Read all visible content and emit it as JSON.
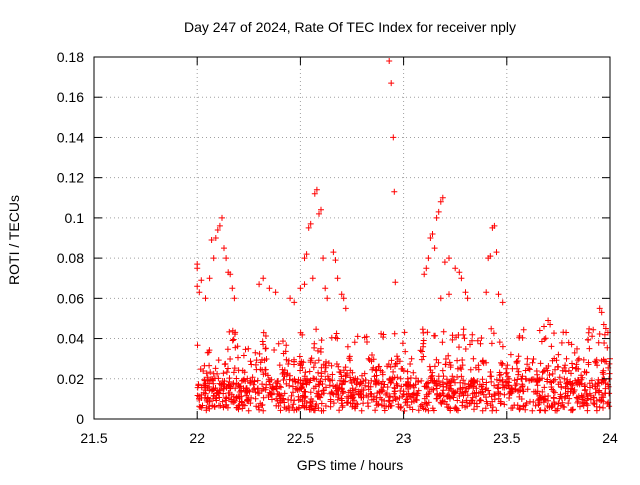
{
  "chart_data": {
    "type": "scatter",
    "title": "Day 247 of 2024, Rate Of TEC Index for receiver nply",
    "xlabel": "GPS time / hours",
    "ylabel": "ROTI / TECUs",
    "xlim": [
      21.5,
      24.0
    ],
    "ylim": [
      0,
      0.18
    ],
    "xticks": [
      21.5,
      22,
      22.5,
      23,
      23.5,
      24
    ],
    "xtick_labels": [
      "21.5",
      "22",
      "22.5",
      "23",
      "23.5",
      "24"
    ],
    "yticks": [
      0,
      0.02,
      0.04,
      0.06,
      0.08,
      0.1,
      0.12,
      0.14,
      0.16,
      0.18
    ],
    "ytick_labels": [
      "0",
      "0.02",
      "0.04",
      "0.06",
      "0.08",
      "0.1",
      "0.12",
      "0.14",
      "0.16",
      "0.18"
    ],
    "grid": true,
    "marker": "+",
    "marker_color": "#ff0000",
    "series": [
      {
        "name": "ROTI",
        "points": [
          [
            22.93,
            0.178
          ],
          [
            22.94,
            0.167
          ],
          [
            22.95,
            0.14
          ],
          [
            22.955,
            0.113
          ],
          [
            22.96,
            0.068
          ],
          [
            22.12,
            0.1
          ],
          [
            22.11,
            0.096
          ],
          [
            22.1,
            0.094
          ],
          [
            22.09,
            0.09
          ],
          [
            22.07,
            0.089
          ],
          [
            22.13,
            0.085
          ],
          [
            22.14,
            0.08
          ],
          [
            22.15,
            0.073
          ],
          [
            22.16,
            0.072
          ],
          [
            22.0,
            0.077
          ],
          [
            22.0,
            0.075
          ],
          [
            22.0,
            0.066
          ],
          [
            22.01,
            0.063
          ],
          [
            22.02,
            0.069
          ],
          [
            22.04,
            0.06
          ],
          [
            22.06,
            0.07
          ],
          [
            22.08,
            0.08
          ],
          [
            22.17,
            0.065
          ],
          [
            22.18,
            0.06
          ],
          [
            22.3,
            0.067
          ],
          [
            22.32,
            0.07
          ],
          [
            22.35,
            0.065
          ],
          [
            22.38,
            0.063
          ],
          [
            22.45,
            0.06
          ],
          [
            22.47,
            0.058
          ],
          [
            22.5,
            0.065
          ],
          [
            22.52,
            0.067
          ],
          [
            22.58,
            0.114
          ],
          [
            22.57,
            0.112
          ],
          [
            22.6,
            0.104
          ],
          [
            22.59,
            0.102
          ],
          [
            22.55,
            0.097
          ],
          [
            22.54,
            0.095
          ],
          [
            22.53,
            0.082
          ],
          [
            22.52,
            0.08
          ],
          [
            22.61,
            0.08
          ],
          [
            22.56,
            0.07
          ],
          [
            22.62,
            0.065
          ],
          [
            22.63,
            0.06
          ],
          [
            22.66,
            0.083
          ],
          [
            22.67,
            0.079
          ],
          [
            22.68,
            0.07
          ],
          [
            22.7,
            0.062
          ],
          [
            22.71,
            0.06
          ],
          [
            22.72,
            0.055
          ],
          [
            23.19,
            0.11
          ],
          [
            23.18,
            0.108
          ],
          [
            23.17,
            0.103
          ],
          [
            23.16,
            0.1
          ],
          [
            23.14,
            0.092
          ],
          [
            23.13,
            0.09
          ],
          [
            23.15,
            0.085
          ],
          [
            23.12,
            0.08
          ],
          [
            23.11,
            0.075
          ],
          [
            23.1,
            0.072
          ],
          [
            23.2,
            0.078
          ],
          [
            23.22,
            0.08
          ],
          [
            23.25,
            0.075
          ],
          [
            23.27,
            0.073
          ],
          [
            23.28,
            0.07
          ],
          [
            23.3,
            0.063
          ],
          [
            23.31,
            0.06
          ],
          [
            23.18,
            0.06
          ],
          [
            23.22,
            0.062
          ],
          [
            23.44,
            0.096
          ],
          [
            23.43,
            0.095
          ],
          [
            23.45,
            0.083
          ],
          [
            23.42,
            0.081
          ],
          [
            23.41,
            0.08
          ],
          [
            23.46,
            0.062
          ],
          [
            23.48,
            0.058
          ],
          [
            23.4,
            0.063
          ],
          [
            23.7,
            0.049
          ],
          [
            23.71,
            0.047
          ],
          [
            23.68,
            0.046
          ],
          [
            23.66,
            0.044
          ],
          [
            23.8,
            0.038
          ],
          [
            23.9,
            0.035
          ],
          [
            23.95,
            0.055
          ],
          [
            23.96,
            0.053
          ],
          [
            23.97,
            0.047
          ],
          [
            23.98,
            0.045
          ],
          [
            23.99,
            0.043
          ],
          [
            24.0,
            0.03
          ],
          [
            23.85,
            0.03
          ],
          [
            23.75,
            0.032
          ],
          [
            23.6,
            0.03
          ],
          [
            23.55,
            0.025
          ],
          [
            23.52,
            0.032
          ],
          [
            23.5,
            0.023
          ],
          [
            23.57,
            0.02
          ]
        ]
      }
    ]
  }
}
